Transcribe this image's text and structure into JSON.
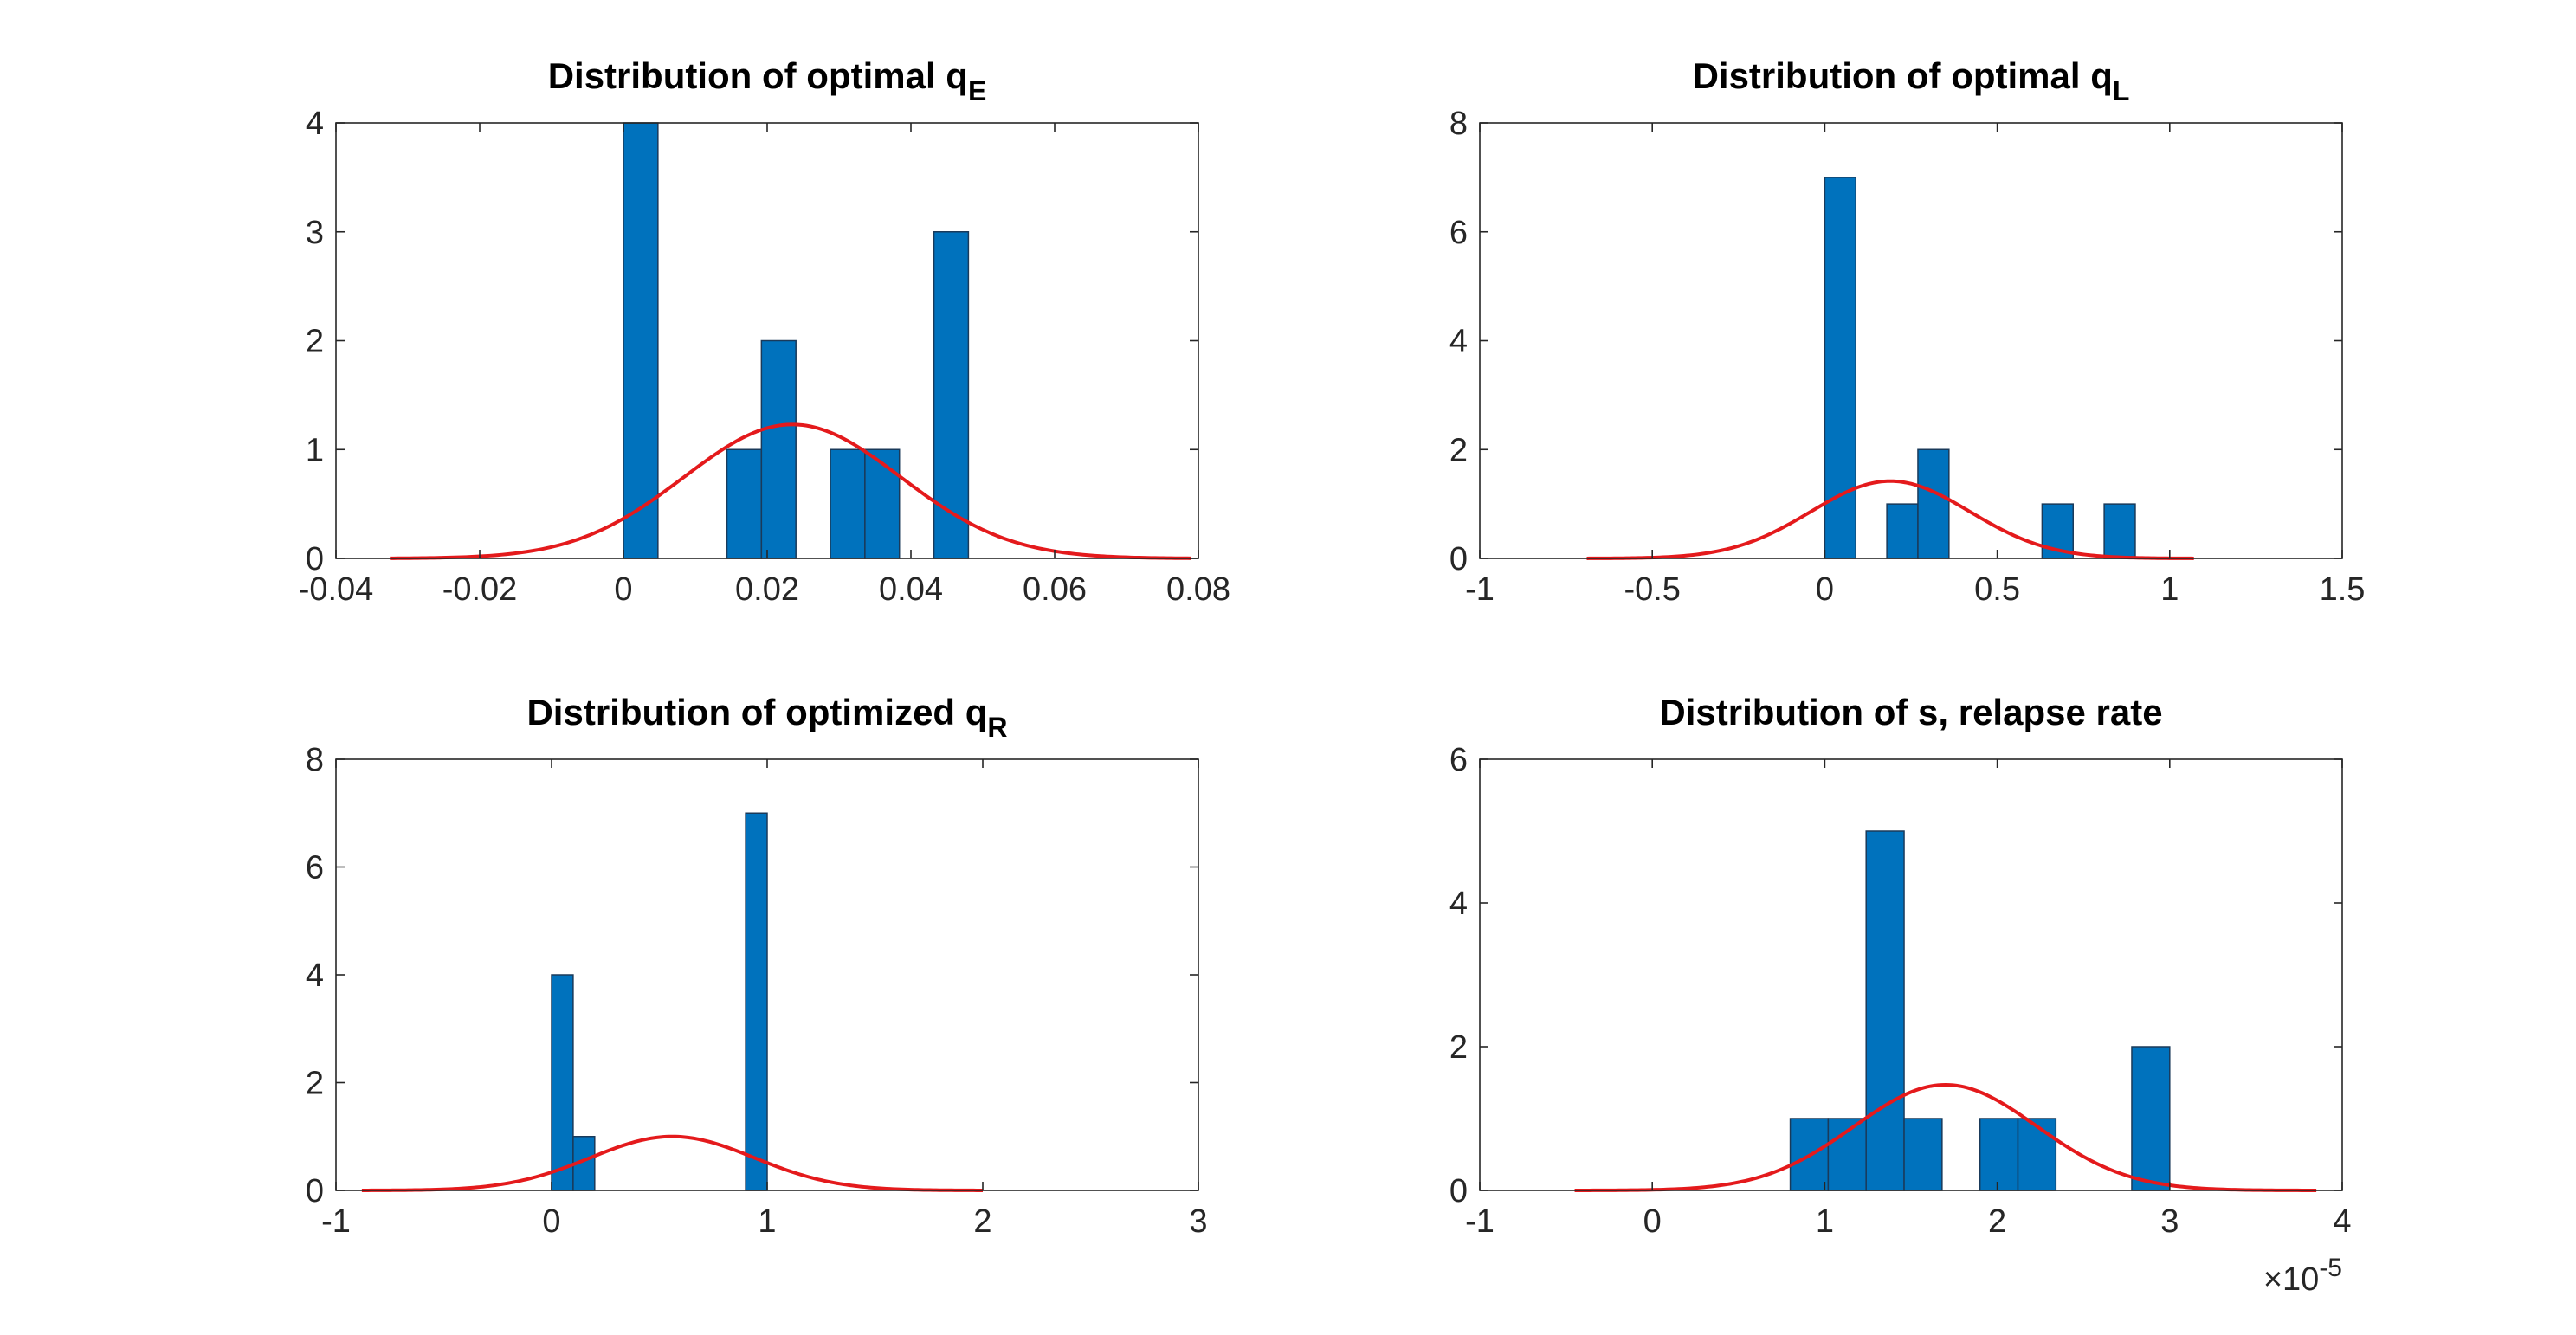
{
  "figure": {
    "background": "#ffffff",
    "bar_color": "#0072BD",
    "bar_edge_color": "#1a3a5a",
    "fit_color": "#e41a1c",
    "axis_color": "#262626"
  },
  "chart_data": [
    {
      "type": "bar",
      "title": "Distribution of optimal q",
      "title_sub": "E",
      "xlabel": "",
      "ylabel": "",
      "xlim": [
        -0.04,
        0.08
      ],
      "ylim": [
        0,
        4
      ],
      "xticks": [
        -0.04,
        -0.02,
        0,
        0.02,
        0.04,
        0.06,
        0.08
      ],
      "xtick_labels": [
        "-0.04",
        "-0.02",
        "0",
        "0.02",
        "0.04",
        "0.06",
        "0.08"
      ],
      "yticks": [
        0,
        1,
        2,
        3,
        4
      ],
      "ytick_labels": [
        "0",
        "1",
        "2",
        "3",
        "4"
      ],
      "exponent_label": "",
      "grid": false,
      "bars": [
        {
          "x0": 0.0,
          "x1": 0.0048,
          "count": 4
        },
        {
          "x0": 0.0144,
          "x1": 0.0192,
          "count": 1
        },
        {
          "x0": 0.0192,
          "x1": 0.024,
          "count": 2
        },
        {
          "x0": 0.0288,
          "x1": 0.0336,
          "count": 1
        },
        {
          "x0": 0.0336,
          "x1": 0.0384,
          "count": 1
        },
        {
          "x0": 0.0432,
          "x1": 0.048,
          "count": 3
        }
      ],
      "fit": {
        "type": "normal",
        "mean": 0.0235,
        "sd": 0.0151,
        "peak": 1.23,
        "x_min": -0.0325,
        "x_max": 0.079
      }
    },
    {
      "type": "bar",
      "title": "Distribution of optimal q",
      "title_sub": "L",
      "xlabel": "",
      "ylabel": "",
      "xlim": [
        -1,
        1.5
      ],
      "ylim": [
        0,
        8
      ],
      "xticks": [
        -1,
        -0.5,
        0,
        0.5,
        1,
        1.5
      ],
      "xtick_labels": [
        "-1",
        "-0.5",
        "0",
        "0.5",
        "1",
        "1.5"
      ],
      "yticks": [
        0,
        2,
        4,
        6,
        8
      ],
      "ytick_labels": [
        "0",
        "2",
        "4",
        "6",
        "8"
      ],
      "exponent_label": "",
      "grid": false,
      "bars": [
        {
          "x0": 0.0,
          "x1": 0.09,
          "count": 7
        },
        {
          "x0": 0.18,
          "x1": 0.27,
          "count": 1
        },
        {
          "x0": 0.27,
          "x1": 0.36,
          "count": 2
        },
        {
          "x0": 0.63,
          "x1": 0.72,
          "count": 1
        },
        {
          "x0": 0.81,
          "x1": 0.9,
          "count": 1
        }
      ],
      "fit": {
        "type": "normal",
        "mean": 0.19,
        "sd": 0.23,
        "peak": 1.42,
        "x_min": -0.69,
        "x_max": 1.07
      }
    },
    {
      "type": "bar",
      "title": "Distribution of optimized q",
      "title_sub": "R",
      "xlabel": "",
      "ylabel": "",
      "xlim": [
        -1,
        3
      ],
      "ylim": [
        0,
        8
      ],
      "xticks": [
        -1,
        0,
        1,
        2,
        3
      ],
      "xtick_labels": [
        "-1",
        "0",
        "1",
        "2",
        "3"
      ],
      "yticks": [
        0,
        2,
        4,
        6,
        8
      ],
      "ytick_labels": [
        "0",
        "2",
        "4",
        "6",
        "8"
      ],
      "exponent_label": "",
      "grid": false,
      "bars": [
        {
          "x0": 0.0,
          "x1": 0.1,
          "count": 4
        },
        {
          "x0": 0.1,
          "x1": 0.2,
          "count": 1
        },
        {
          "x0": 0.9,
          "x1": 1.0,
          "count": 7
        }
      ],
      "fit": {
        "type": "normal",
        "mean": 0.56,
        "sd": 0.38,
        "peak": 1.0,
        "x_min": -0.88,
        "x_max": 2.0
      }
    },
    {
      "type": "bar",
      "title": "Distribution of s, relapse rate",
      "title_sub": "",
      "xlabel": "",
      "ylabel": "",
      "xlim": [
        -1,
        4
      ],
      "ylim": [
        0,
        6
      ],
      "xticks": [
        -1,
        0,
        1,
        2,
        3,
        4
      ],
      "xtick_labels": [
        "-1",
        "0",
        "1",
        "2",
        "3",
        "4"
      ],
      "yticks": [
        0,
        2,
        4,
        6
      ],
      "ytick_labels": [
        "0",
        "2",
        "4",
        "6"
      ],
      "exponent_label": "×10",
      "exponent_power": "-5",
      "grid": false,
      "bars": [
        {
          "x0": 0.8,
          "x1": 1.02,
          "count": 1
        },
        {
          "x0": 1.02,
          "x1": 1.24,
          "count": 1
        },
        {
          "x0": 1.24,
          "x1": 1.46,
          "count": 5
        },
        {
          "x0": 1.46,
          "x1": 1.68,
          "count": 1
        },
        {
          "x0": 1.9,
          "x1": 2.12,
          "count": 1
        },
        {
          "x0": 2.12,
          "x1": 2.34,
          "count": 1
        },
        {
          "x0": 2.78,
          "x1": 3.0,
          "count": 2
        }
      ],
      "fit": {
        "type": "normal",
        "mean": 1.7,
        "sd": 0.53,
        "peak": 1.47,
        "x_min": -0.45,
        "x_max": 3.85
      }
    }
  ]
}
